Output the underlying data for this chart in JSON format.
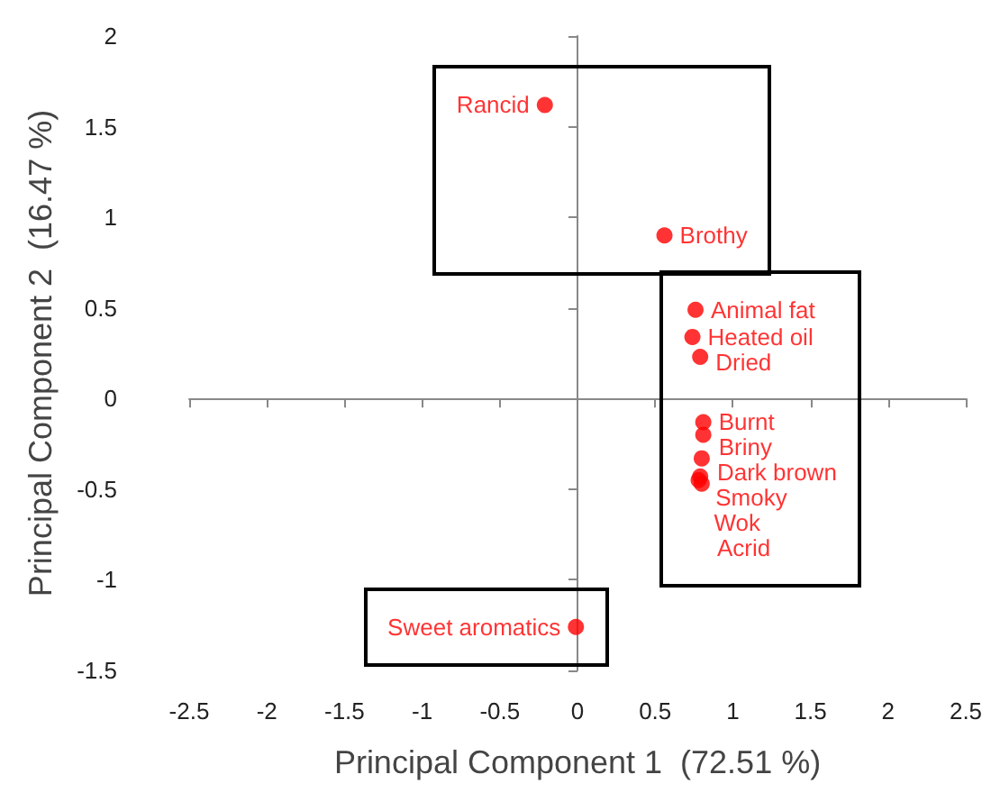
{
  "chart_data": {
    "type": "scatter",
    "xlabel": "Principal Component 1  (72.51 %)",
    "ylabel": "Principal Component 2  (16.47 %)",
    "xlim": [
      -2.5,
      2.5
    ],
    "xticks": [
      -2.5,
      -2,
      -1.5,
      -1,
      -0.5,
      0,
      0.5,
      1,
      1.5,
      2,
      2.5
    ],
    "ylim": [
      -1.5,
      2
    ],
    "yticks": [
      -1.5,
      -1,
      -0.5,
      0,
      0.5,
      1,
      1.5,
      2
    ],
    "marker": "circle",
    "series": [
      {
        "color": "#ff0000",
        "x": [
          -0.21,
          0.56
        ],
        "values": [
          1.62,
          0.9
        ],
        "value_labels": [
          "Rancid",
          "Brothy"
        ]
      },
      {
        "color": "#ff0000",
        "x": [
          0.76,
          0.74,
          0.79,
          0.81,
          0.81,
          0.8,
          0.79,
          0.8,
          0.78
        ],
        "values": [
          0.49,
          0.34,
          0.23,
          -0.13,
          -0.2,
          -0.33,
          -0.43,
          -0.47,
          -0.45
        ],
        "value_labels": [
          "Animal fat",
          "Heated oil",
          "Dried",
          "Burnt",
          "Briny",
          "Dark brown",
          "Smoky",
          "Acrid",
          "Wok"
        ]
      },
      {
        "color": "#ff0000",
        "x": [
          -0.01
        ],
        "values": [
          -1.26
        ],
        "value_labels": [
          "Sweet aromatics"
        ]
      }
    ]
  }
}
